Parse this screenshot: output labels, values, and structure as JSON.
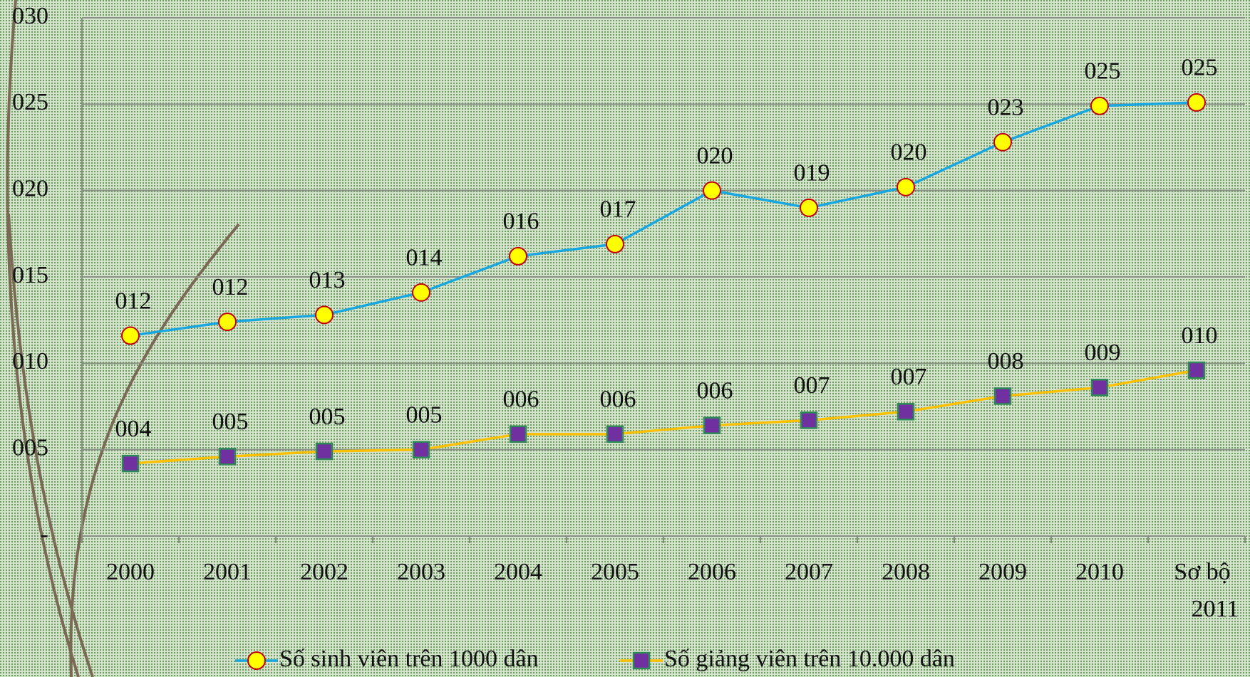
{
  "chart_data": {
    "type": "line",
    "categories": [
      "2000",
      "2001",
      "2002",
      "2003",
      "2004",
      "2005",
      "2006",
      "2007",
      "2008",
      "2009",
      "2010",
      "Sơ bộ 2011"
    ],
    "series": [
      {
        "name": "Số sinh viên trên 1000 dân",
        "color": "#1aa7e0",
        "marker": "circle",
        "marker_color": "#ffff00",
        "marker_edge": "#c00000",
        "values": [
          11.6,
          12.4,
          12.8,
          14.1,
          16.2,
          16.9,
          20.0,
          19.0,
          20.2,
          22.8,
          24.9,
          25.1
        ],
        "value_labels": [
          "012",
          "012",
          "013",
          "014",
          "016",
          "017",
          "020",
          "019",
          "020",
          "023",
          "025",
          "025"
        ]
      },
      {
        "name": "Số giảng viên trên 10.000 dân",
        "color": "#ffc000",
        "marker": "square",
        "marker_color": "#7030a0",
        "marker_edge": "#2e8b57",
        "values": [
          4.2,
          4.6,
          4.9,
          5.0,
          5.9,
          5.9,
          6.4,
          6.7,
          7.2,
          8.1,
          8.6,
          9.6
        ],
        "value_labels": [
          "004",
          "005",
          "005",
          "005",
          "006",
          "006",
          "006",
          "007",
          "007",
          "008",
          "009",
          "010"
        ]
      }
    ],
    "ylim": [
      0,
      30
    ],
    "yticks": [
      {
        "value": 0,
        "label": "-"
      },
      {
        "value": 5,
        "label": "005"
      },
      {
        "value": 10,
        "label": "010"
      },
      {
        "value": 15,
        "label": "015"
      },
      {
        "value": 20,
        "label": "020"
      },
      {
        "value": 25,
        "label": "025"
      },
      {
        "value": 30,
        "label": "030"
      }
    ],
    "grid": true,
    "legend": "bottom"
  }
}
